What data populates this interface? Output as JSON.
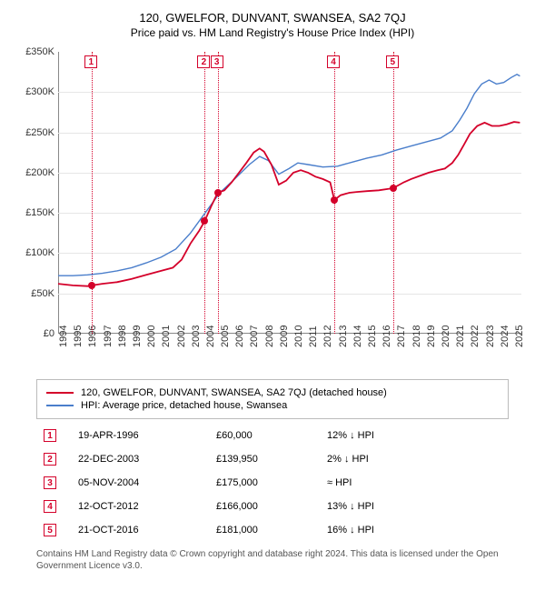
{
  "title": "120, GWELFOR, DUNVANT, SWANSEA, SA2 7QJ",
  "subtitle": "Price paid vs. HM Land Registry's House Price Index (HPI)",
  "chart": {
    "type": "line",
    "background_color": "#ffffff",
    "grid_color": "#e6e6e6",
    "axis_color": "#888888",
    "xlim": [
      1994,
      2025.5
    ],
    "ylim": [
      0,
      350000
    ],
    "yticks": [
      0,
      50000,
      100000,
      150000,
      200000,
      250000,
      300000,
      350000
    ],
    "ytick_labels": [
      "£0",
      "£50K",
      "£100K",
      "£150K",
      "£200K",
      "£250K",
      "£300K",
      "£350K"
    ],
    "xticks": [
      1994,
      1995,
      1996,
      1997,
      1998,
      1999,
      2000,
      2001,
      2002,
      2003,
      2004,
      2005,
      2006,
      2007,
      2008,
      2009,
      2010,
      2011,
      2012,
      2013,
      2014,
      2015,
      2016,
      2017,
      2018,
      2019,
      2020,
      2021,
      2022,
      2023,
      2024,
      2025
    ],
    "title_fontsize": 13,
    "label_fontsize": 11
  },
  "series": {
    "property": {
      "label": "120, GWELFOR, DUNVANT, SWANSEA, SA2 7QJ (detached house)",
      "color": "#d4002a",
      "line_width": 1.8,
      "data": [
        [
          1994.0,
          62000
        ],
        [
          1995.0,
          60000
        ],
        [
          1996.0,
          59000
        ],
        [
          1996.3,
          60000
        ],
        [
          1997.0,
          62000
        ],
        [
          1998.0,
          64000
        ],
        [
          1999.0,
          68000
        ],
        [
          2000.0,
          73000
        ],
        [
          2001.0,
          78000
        ],
        [
          2001.8,
          82000
        ],
        [
          2002.4,
          92000
        ],
        [
          2003.0,
          112000
        ],
        [
          2003.6,
          128000
        ],
        [
          2003.97,
          139950
        ],
        [
          2004.4,
          158000
        ],
        [
          2004.85,
          175000
        ],
        [
          2005.3,
          178000
        ],
        [
          2005.8,
          188000
        ],
        [
          2006.3,
          200000
        ],
        [
          2006.8,
          212000
        ],
        [
          2007.3,
          225000
        ],
        [
          2007.7,
          230000
        ],
        [
          2008.0,
          226000
        ],
        [
          2008.5,
          210000
        ],
        [
          2009.0,
          185000
        ],
        [
          2009.5,
          190000
        ],
        [
          2010.0,
          200000
        ],
        [
          2010.5,
          203000
        ],
        [
          2011.0,
          200000
        ],
        [
          2011.5,
          195000
        ],
        [
          2012.0,
          192000
        ],
        [
          2012.5,
          188000
        ],
        [
          2012.78,
          166000
        ],
        [
          2013.2,
          172000
        ],
        [
          2013.8,
          175000
        ],
        [
          2014.3,
          176000
        ],
        [
          2015.0,
          177000
        ],
        [
          2015.8,
          178000
        ],
        [
          2016.5,
          180000
        ],
        [
          2016.81,
          181000
        ],
        [
          2017.5,
          188000
        ],
        [
          2018.0,
          192000
        ],
        [
          2018.6,
          196000
        ],
        [
          2019.2,
          200000
        ],
        [
          2019.8,
          203000
        ],
        [
          2020.3,
          205000
        ],
        [
          2020.8,
          212000
        ],
        [
          2021.2,
          222000
        ],
        [
          2021.6,
          235000
        ],
        [
          2022.0,
          248000
        ],
        [
          2022.5,
          258000
        ],
        [
          2023.0,
          262000
        ],
        [
          2023.5,
          258000
        ],
        [
          2024.0,
          258000
        ],
        [
          2024.5,
          260000
        ],
        [
          2025.0,
          263000
        ],
        [
          2025.4,
          262000
        ]
      ]
    },
    "hpi": {
      "label": "HPI: Average price, detached house, Swansea",
      "color": "#4a7ecb",
      "line_width": 1.4,
      "data": [
        [
          1994.0,
          72000
        ],
        [
          1995.0,
          72000
        ],
        [
          1996.0,
          73000
        ],
        [
          1997.0,
          75000
        ],
        [
          1998.0,
          78000
        ],
        [
          1999.0,
          82000
        ],
        [
          2000.0,
          88000
        ],
        [
          2001.0,
          95000
        ],
        [
          2002.0,
          105000
        ],
        [
          2003.0,
          125000
        ],
        [
          2004.0,
          150000
        ],
        [
          2005.0,
          175000
        ],
        [
          2006.0,
          192000
        ],
        [
          2007.0,
          210000
        ],
        [
          2007.7,
          220000
        ],
        [
          2008.3,
          215000
        ],
        [
          2009.0,
          198000
        ],
        [
          2009.7,
          205000
        ],
        [
          2010.3,
          212000
        ],
        [
          2011.0,
          210000
        ],
        [
          2012.0,
          207000
        ],
        [
          2013.0,
          208000
        ],
        [
          2014.0,
          213000
        ],
        [
          2015.0,
          218000
        ],
        [
          2016.0,
          222000
        ],
        [
          2017.0,
          228000
        ],
        [
          2018.0,
          233000
        ],
        [
          2019.0,
          238000
        ],
        [
          2020.0,
          243000
        ],
        [
          2020.8,
          252000
        ],
        [
          2021.3,
          265000
        ],
        [
          2021.8,
          280000
        ],
        [
          2022.3,
          298000
        ],
        [
          2022.8,
          310000
        ],
        [
          2023.3,
          315000
        ],
        [
          2023.8,
          310000
        ],
        [
          2024.3,
          312000
        ],
        [
          2024.8,
          318000
        ],
        [
          2025.2,
          322000
        ],
        [
          2025.4,
          320000
        ]
      ]
    }
  },
  "sales": [
    {
      "n": "1",
      "date": "19-APR-1996",
      "x": 1996.3,
      "price": 60000,
      "price_str": "£60,000",
      "delta": "12% ↓ HPI",
      "color": "#d4002a"
    },
    {
      "n": "2",
      "date": "22-DEC-2003",
      "x": 2003.97,
      "price": 139950,
      "price_str": "£139,950",
      "delta": "2% ↓ HPI",
      "color": "#d4002a"
    },
    {
      "n": "3",
      "date": "05-NOV-2004",
      "x": 2004.85,
      "price": 175000,
      "price_str": "£175,000",
      "delta": "≈ HPI",
      "color": "#d4002a"
    },
    {
      "n": "4",
      "date": "12-OCT-2012",
      "x": 2012.78,
      "price": 166000,
      "price_str": "£166,000",
      "delta": "13% ↓ HPI",
      "color": "#d4002a"
    },
    {
      "n": "5",
      "date": "21-OCT-2016",
      "x": 2016.81,
      "price": 181000,
      "price_str": "£181,000",
      "delta": "16% ↓ HPI",
      "color": "#d4002a"
    }
  ],
  "footnote": "Contains HM Land Registry data © Crown copyright and database right 2024. This data is licensed under the Open Government Licence v3.0."
}
